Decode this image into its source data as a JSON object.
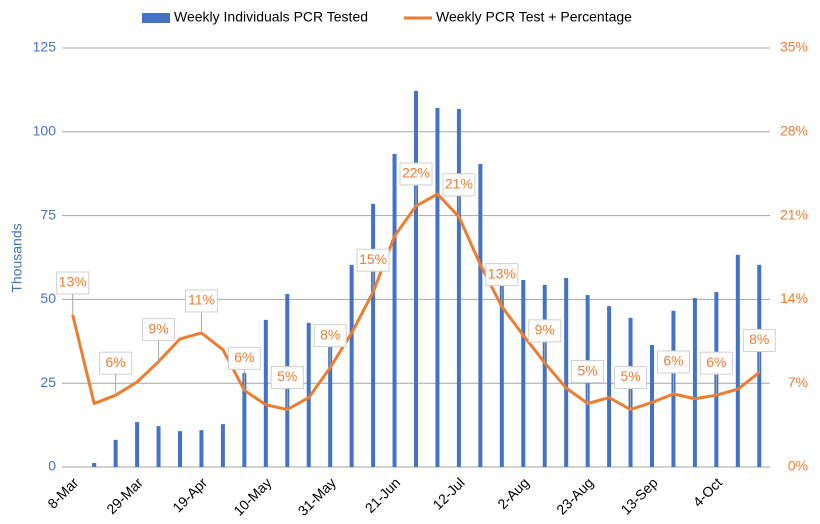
{
  "chart_data": {
    "type": "combo",
    "y_label": "Thousands",
    "categories": [
      "8-Mar",
      null,
      null,
      "29-Mar",
      null,
      null,
      "19-Apr",
      null,
      null,
      "10-May",
      null,
      null,
      "31-May",
      null,
      null,
      "21-Jun",
      null,
      null,
      "12-Jul",
      null,
      null,
      "2-Aug",
      null,
      null,
      "23-Aug",
      null,
      null,
      "13-Sep",
      null,
      null,
      "4-Oct",
      null,
      null
    ],
    "series": [
      {
        "name": "Weekly Individuals PCR Tested",
        "type": "bar",
        "color": "#4472c4",
        "values": [
          null,
          1.2,
          8.1,
          13.4,
          12.2,
          10.7,
          11.0,
          12.8,
          28.0,
          43.9,
          51.6,
          43.0,
          40.3,
          60.3,
          78.5,
          93.4,
          112.2,
          107.1,
          106.8,
          90.4,
          60.3,
          55.8,
          54.3,
          56.4,
          51.3,
          48.0,
          44.5,
          36.4,
          46.6,
          50.4,
          52.2,
          63.3,
          60.3
        ]
      },
      {
        "name": "Weekly PCR Test + Percentage",
        "type": "line",
        "axis": "y2",
        "color": "#ed7d31",
        "values": [
          12.7,
          5.3,
          6.0,
          7.1,
          8.8,
          10.7,
          11.2,
          9.8,
          6.4,
          5.2,
          4.8,
          5.8,
          8.3,
          11.2,
          14.6,
          19.3,
          21.8,
          22.8,
          20.9,
          16.9,
          13.4,
          11.0,
          8.7,
          6.6,
          5.3,
          5.8,
          4.8,
          5.4,
          6.1,
          5.7,
          6.0,
          6.5,
          7.9
        ],
        "value_labels": [
          "13%",
          null,
          "6%",
          null,
          "9%",
          null,
          "11%",
          null,
          "6%",
          null,
          "5%",
          null,
          "8%",
          null,
          "15%",
          null,
          "22%",
          null,
          "21%",
          null,
          "13%",
          null,
          "9%",
          null,
          "5%",
          null,
          "5%",
          null,
          "6%",
          null,
          "6%",
          null,
          "8%"
        ]
      }
    ],
    "ylim": [
      0,
      125
    ],
    "yticks": [
      0,
      25,
      50,
      75,
      100,
      125
    ],
    "y2lim": [
      0,
      35
    ],
    "y2ticks": [
      {
        "value": 0,
        "label": "0%"
      },
      {
        "value": 7,
        "label": "7%"
      },
      {
        "value": 14,
        "label": "14%"
      },
      {
        "value": 21,
        "label": "21%"
      },
      {
        "value": 28,
        "label": "28%"
      },
      {
        "value": 35,
        "label": "35%"
      }
    ],
    "grid": true,
    "legend": "top"
  }
}
